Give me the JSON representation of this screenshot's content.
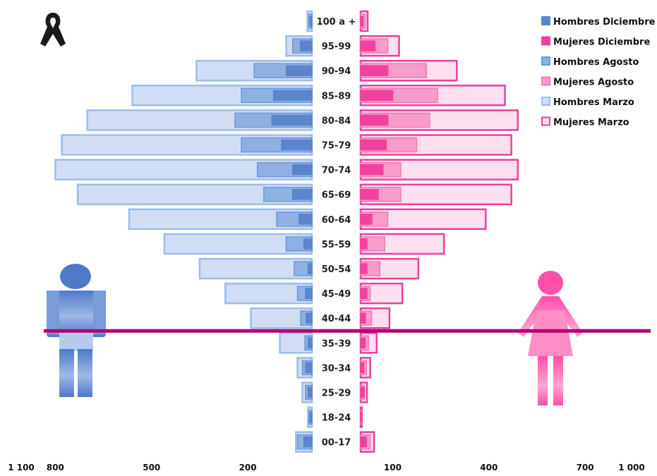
{
  "chart_data": {
    "type": "bar",
    "orientation": "horizontal-population-pyramid",
    "title": "",
    "xlabel": "",
    "ylabel": "",
    "categories": [
      "100 a +",
      "95-99",
      "90-94",
      "85-89",
      "80-84",
      "75-79",
      "70-74",
      "65-69",
      "60-64",
      "55-59",
      "50-54",
      "45-49",
      "40-44",
      "35-39",
      "30-34",
      "25-29",
      "18-24",
      "00-17"
    ],
    "series": [
      {
        "name": "Hombres Marzo",
        "side": "left",
        "style": "light",
        "color": "#d0ddf5",
        "stroke": "#9ebde8",
        "values": [
          14,
          80,
          360,
          560,
          700,
          780,
          800,
          730,
          570,
          460,
          350,
          270,
          190,
          100,
          45,
          30,
          12,
          50
        ]
      },
      {
        "name": "Hombres Agosto",
        "side": "left",
        "style": "medium",
        "color": "#8fb0e3",
        "stroke": "#6e98d8",
        "values": [
          10,
          60,
          180,
          220,
          240,
          220,
          170,
          150,
          110,
          80,
          55,
          45,
          35,
          22,
          30,
          20,
          10,
          45
        ]
      },
      {
        "name": "Hombres Diciembre",
        "side": "left",
        "style": "dark",
        "color": "#5b86cc",
        "stroke": "#5b86cc",
        "values": [
          6,
          36,
          80,
          120,
          125,
          95,
          60,
          60,
          40,
          25,
          12,
          20,
          18,
          12,
          20,
          12,
          6,
          25
        ]
      },
      {
        "name": "Mujeres Marzo",
        "side": "right",
        "style": "light",
        "color": "#fde0ef",
        "stroke": "#ea3fa0",
        "values": [
          22,
          120,
          300,
          450,
          490,
          470,
          490,
          470,
          390,
          260,
          180,
          130,
          90,
          50,
          30,
          20,
          4,
          42
        ]
      },
      {
        "name": "Mujeres Agosto",
        "side": "right",
        "style": "medium",
        "color": "#f99bcb",
        "stroke": "#f07ab8",
        "values": [
          15,
          85,
          205,
          240,
          215,
          175,
          125,
          125,
          85,
          75,
          60,
          30,
          34,
          25,
          18,
          12,
          3,
          30
        ]
      },
      {
        "name": "Mujeres Diciembre",
        "side": "right",
        "style": "dark",
        "color": "#f0429d",
        "stroke": "#f0429d",
        "values": [
          8,
          45,
          85,
          100,
          85,
          80,
          70,
          55,
          35,
          20,
          20,
          20,
          15,
          14,
          10,
          12,
          2,
          18
        ]
      }
    ],
    "x_ticks_left": [
      {
        "value": 1100,
        "label": "1 100"
      },
      {
        "value": 800,
        "label": "800"
      },
      {
        "value": 500,
        "label": "500"
      },
      {
        "value": 200,
        "label": "200"
      }
    ],
    "x_ticks_right": [
      {
        "value": 100,
        "label": "100"
      },
      {
        "value": 400,
        "label": "400"
      },
      {
        "value": 700,
        "label": "700"
      },
      {
        "value": 1000,
        "label": "1 000"
      }
    ],
    "legend": {
      "placement": "top-right",
      "items": [
        {
          "label": "Hombres Diciembre",
          "color": "#5b86cc",
          "stroke": "#5b86cc"
        },
        {
          "label": "Mujeres Diciembre",
          "color": "#f0429d",
          "stroke": "#f0429d"
        },
        {
          "label": "Hombres Agosto",
          "color": "#8fb0e3",
          "stroke": "#6e98d8"
        },
        {
          "label": "Mujeres Agosto",
          "color": "#f99bcb",
          "stroke": "#f07ab8"
        },
        {
          "label": "Hombres Marzo",
          "color": "#d0ddf5",
          "stroke": "#9ebde8"
        },
        {
          "label": "Mujeres Marzo",
          "color": "#fde0ef",
          "stroke": "#ea3fa0"
        }
      ]
    },
    "reference_line": {
      "between": [
        "40-44",
        "35-39"
      ],
      "color": "#b5006e"
    },
    "grid": false
  },
  "icons": {
    "ribbon": "mourning-ribbon-icon",
    "male": "male-figure-icon",
    "female": "female-figure-icon"
  },
  "colors": {
    "male_icon_top": "#4f79c9",
    "male_icon_bottom": "#c9d7f1",
    "female_icon": "#ff66b3",
    "ribbon": "#1a1a1a"
  }
}
